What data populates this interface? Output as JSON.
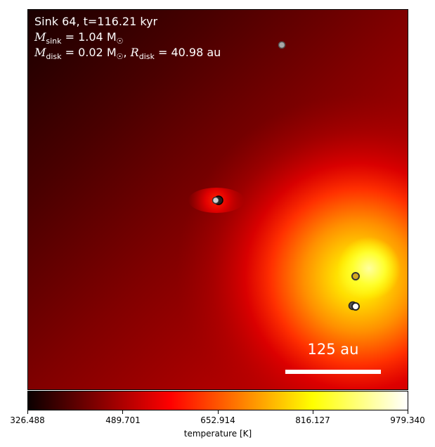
{
  "annotation": {
    "line1": "Sink 64, t=116.21 kyr",
    "msink_symbol": "M",
    "msink_sub": "sink",
    "msink_value": " = 1.04 M",
    "msink_unit_sub": "☉",
    "mdisk_symbol": "M",
    "mdisk_sub": "disk",
    "mdisk_value": " = 0.02 M",
    "mdisk_unit_sub": "☉",
    "mdisk_sep": ", ",
    "rdisk_symbol": "R",
    "rdisk_sub": "disk",
    "rdisk_value": " = 40.98 au"
  },
  "scale_bar": {
    "label": "125 au"
  },
  "colorbar": {
    "label": "temperature [K]",
    "ticks": [
      "326.488",
      "489.701",
      "652.914",
      "816.127",
      "979.340"
    ],
    "colormap": "hot"
  },
  "sinks": [
    {
      "name": "sink-top",
      "fill": "#a8a8a8"
    },
    {
      "name": "sink-center",
      "fill": "#d0d0d0"
    },
    {
      "name": "sink-bottom-right-1",
      "fill": "#c8a020"
    },
    {
      "name": "sink-bottom-right-2",
      "fill": "#ffffff"
    }
  ]
}
